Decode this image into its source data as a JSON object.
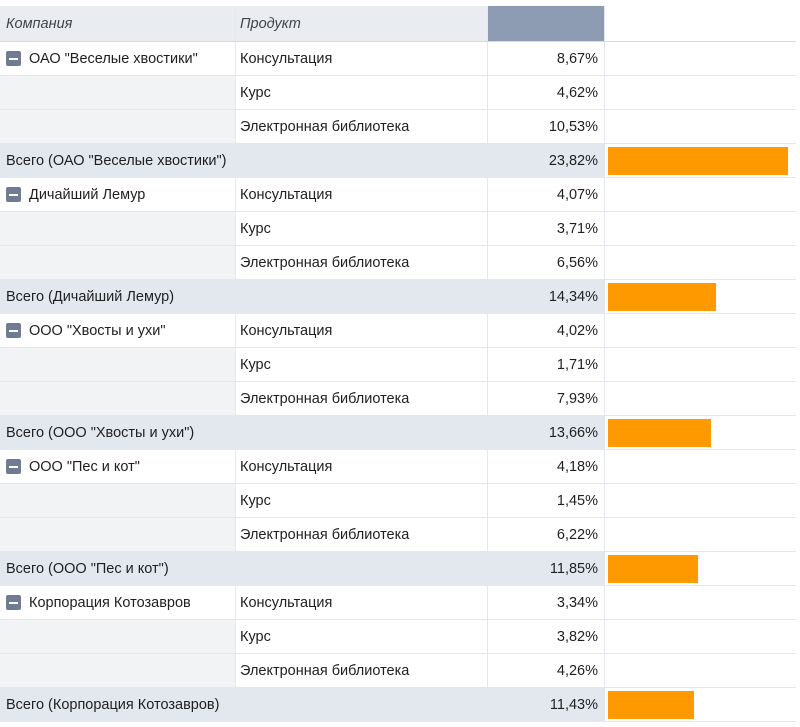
{
  "headers": {
    "company": "Компания",
    "product": "Продукт",
    "value": ""
  },
  "colors": {
    "bar": "#ff9900",
    "toggle": "#6f7c94",
    "header_value": "#8d9bb3"
  },
  "groups": [
    {
      "company": "ОАО \"Веселые хвостики\"",
      "rows": [
        {
          "product": "Консультация",
          "value": "8,67%"
        },
        {
          "product": "Курс",
          "value": "4,62%"
        },
        {
          "product": "Электронная библиотека",
          "value": "10,53%"
        }
      ],
      "total_label": "Всего (ОАО \"Веселые хвостики\")",
      "total_value": "23,82%",
      "total_fraction": 0.2382
    },
    {
      "company": "Дичайший Лемур",
      "rows": [
        {
          "product": "Консультация",
          "value": "4,07%"
        },
        {
          "product": "Курс",
          "value": "3,71%"
        },
        {
          "product": "Электронная библиотека",
          "value": "6,56%"
        }
      ],
      "total_label": "Всего (Дичайший Лемур)",
      "total_value": "14,34%",
      "total_fraction": 0.1434
    },
    {
      "company": "ООО \"Хвосты и ухи\"",
      "rows": [
        {
          "product": "Консультация",
          "value": "4,02%"
        },
        {
          "product": "Курс",
          "value": "1,71%"
        },
        {
          "product": "Электронная библиотека",
          "value": "7,93%"
        }
      ],
      "total_label": "Всего (ООО \"Хвосты и ухи\")",
      "total_value": "13,66%",
      "total_fraction": 0.1366
    },
    {
      "company": "ООО \"Пес и кот\"",
      "rows": [
        {
          "product": "Консультация",
          "value": "4,18%"
        },
        {
          "product": "Курс",
          "value": "1,45%"
        },
        {
          "product": "Электронная библиотека",
          "value": "6,22%"
        }
      ],
      "total_label": "Всего (ООО \"Пес и кот\")",
      "total_value": "11,85%",
      "total_fraction": 0.1185
    },
    {
      "company": "Корпорация Котозавров",
      "rows": [
        {
          "product": "Консультация",
          "value": "3,34%"
        },
        {
          "product": "Курс",
          "value": "3,82%"
        },
        {
          "product": "Электронная библиотека",
          "value": "4,26%"
        }
      ],
      "total_label": "Всего (Корпорация Котозавров)",
      "total_value": "11,43%",
      "total_fraction": 0.1143
    }
  ]
}
